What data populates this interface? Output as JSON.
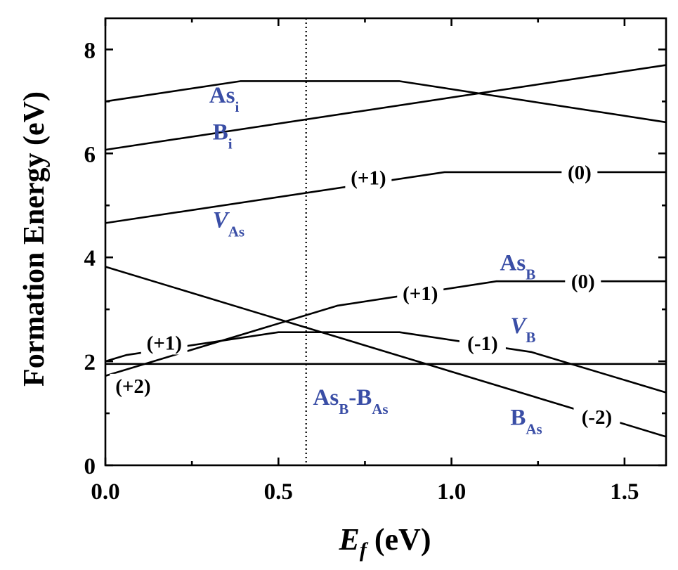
{
  "chart_data": {
    "type": "line",
    "xlabel_main": "E",
    "xlabel_sub": "f",
    "xlabel_unit": " (eV)",
    "ylabel": "Formation Energy (eV)",
    "xlim": [
      0.0,
      1.62
    ],
    "ylim": [
      0,
      8.6
    ],
    "x_ticks": [
      0.0,
      0.5,
      1.0,
      1.5
    ],
    "x_tick_labels": [
      "0.0",
      "0.5",
      "1.0",
      "1.5"
    ],
    "y_ticks": [
      0,
      2,
      4,
      6,
      8
    ],
    "y_tick_labels": [
      "0",
      "2",
      "4",
      "6",
      "8"
    ],
    "vline_x": 0.58,
    "grid": false,
    "legend": "none",
    "series": [
      {
        "name": "As_i",
        "label_main": "As",
        "label_sub": "i",
        "label_x": 0.3,
        "label_y": 6.98,
        "x": [
          0.0,
          0.39,
          0.85,
          1.62
        ],
        "y": [
          7.0,
          7.39,
          7.39,
          6.6
        ],
        "color": "#3a4ea6"
      },
      {
        "name": "B_i",
        "label_main": "B",
        "label_sub": "i",
        "label_x": 0.31,
        "label_y": 6.27,
        "x": [
          0.0,
          1.62
        ],
        "y": [
          6.07,
          7.7
        ],
        "color": "#3a4ea6"
      },
      {
        "name": "V_As",
        "label_main": "V",
        "label_sub": "As",
        "label_x": 0.31,
        "label_y": 4.58,
        "x": [
          0.0,
          0.98,
          1.62
        ],
        "y": [
          4.66,
          5.64,
          5.64
        ],
        "color": "#3a4ea6"
      },
      {
        "name": "As_B",
        "label_main": "As",
        "label_sub": "B",
        "label_x": 1.14,
        "label_y": 3.75,
        "x": [
          0.0,
          0.67,
          1.13,
          1.62
        ],
        "y": [
          1.72,
          3.07,
          3.54,
          3.54
        ],
        "color": "#3a4ea6"
      },
      {
        "name": "V_B",
        "label_main": "V",
        "label_sub": "B",
        "label_x": 1.17,
        "label_y": 2.54,
        "x": [
          0.0,
          0.06,
          0.5,
          0.85,
          1.23,
          1.62
        ],
        "y": [
          2.0,
          2.12,
          2.56,
          2.56,
          2.18,
          1.4
        ],
        "color": "#3a4ea6"
      },
      {
        "name": "As_B-B_As",
        "label_main": "As",
        "label_sub": "B",
        "label_main2": "-B",
        "label_sub2": "As",
        "label_x": 0.6,
        "label_y": 1.16,
        "x": [
          0.0,
          1.62
        ],
        "y": [
          1.95,
          1.95
        ],
        "color": "#e0232a"
      },
      {
        "name": "B_As",
        "label_main": "B",
        "label_sub": "As",
        "label_x": 1.17,
        "label_y": 0.78,
        "x": [
          0.0,
          1.62
        ],
        "y": [
          3.82,
          0.55
        ],
        "color": "#3a4ea6"
      }
    ],
    "annotations": [
      {
        "text": "(+1)",
        "x": 0.76,
        "y": 5.54
      },
      {
        "text": "(0)",
        "x": 1.37,
        "y": 5.64
      },
      {
        "text": "(+1)",
        "x": 0.91,
        "y": 3.31
      },
      {
        "text": "(0)",
        "x": 1.38,
        "y": 3.54
      },
      {
        "text": "(+1)",
        "x": 0.17,
        "y": 2.36
      },
      {
        "text": "(-1)",
        "x": 1.09,
        "y": 2.35
      },
      {
        "text": "(+2)",
        "x": 0.08,
        "y": 1.53
      },
      {
        "text": "(-2)",
        "x": 1.42,
        "y": 0.93
      }
    ]
  }
}
